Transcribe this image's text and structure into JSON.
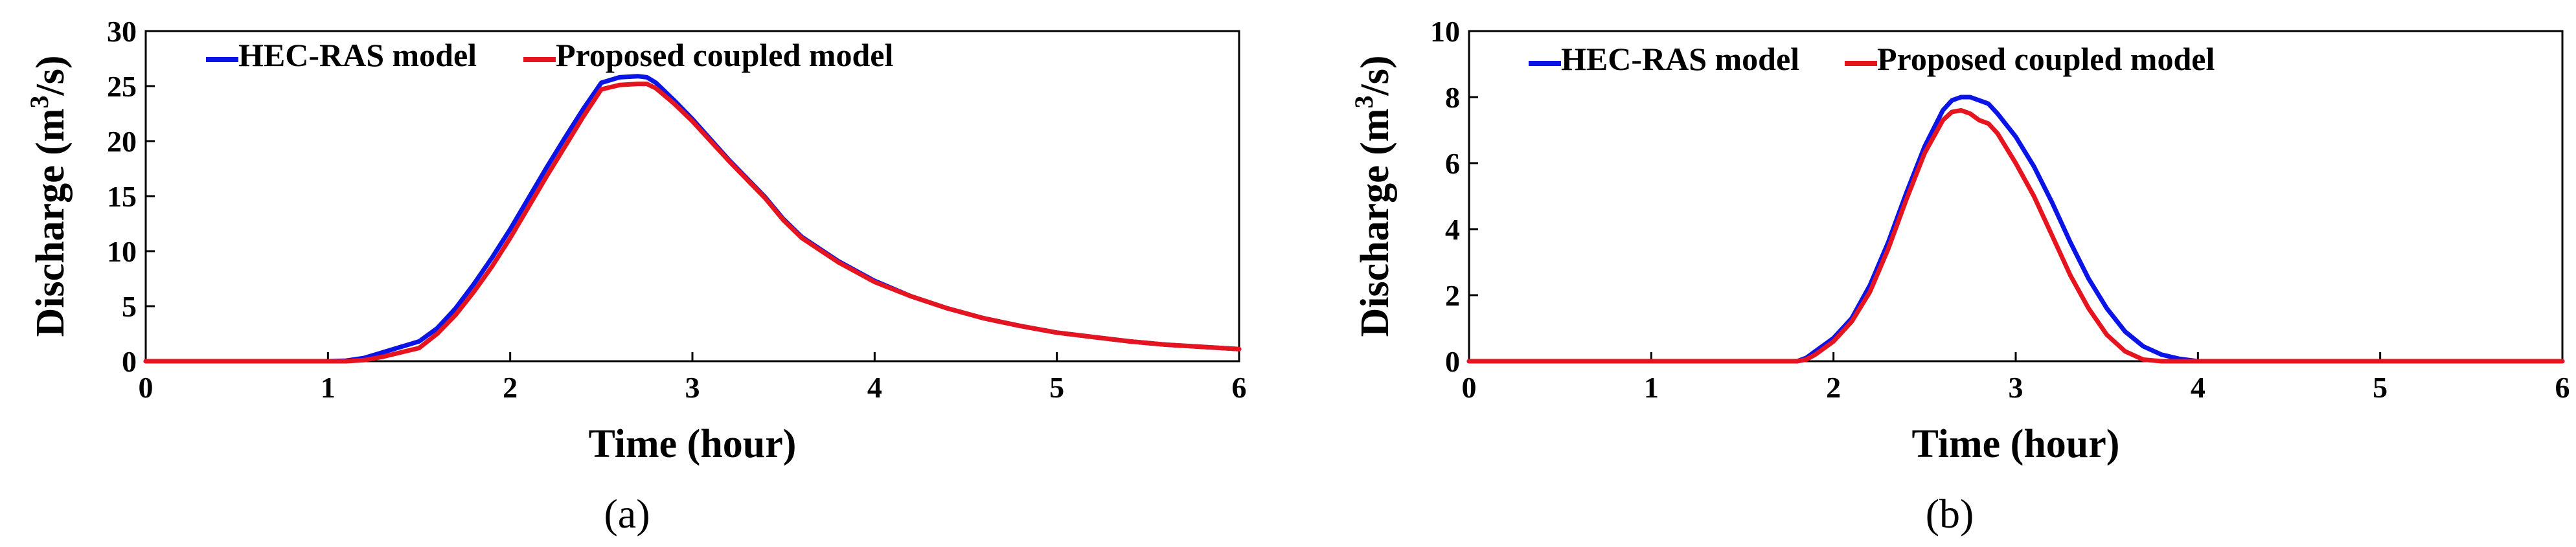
{
  "colors": {
    "hec_ras": "#0a14e6",
    "coupled": "#e6141e",
    "axis": "#000000"
  },
  "chart_data": [
    {
      "type": "line",
      "panel_label": "(a)",
      "xlabel": "Time (hour)",
      "ylabel_prefix": "Discharge (m",
      "ylabel_sup": "3",
      "ylabel_suffix": "/s)",
      "xlim": [
        0,
        6
      ],
      "ylim": [
        0,
        30
      ],
      "xticks": [
        0,
        1,
        2,
        3,
        4,
        5,
        6
      ],
      "yticks": [
        0,
        5,
        10,
        15,
        20,
        25,
        30
      ],
      "legend_position": "top-left",
      "series": [
        {
          "name": "HEC-RAS model",
          "color": "#0a14e6",
          "x": [
            0,
            1.0,
            1.1,
            1.2,
            1.3,
            1.4,
            1.5,
            1.6,
            1.7,
            1.8,
            1.9,
            2.0,
            2.1,
            2.2,
            2.3,
            2.4,
            2.5,
            2.6,
            2.7,
            2.75,
            2.8,
            2.9,
            3.0,
            3.2,
            3.4,
            3.5,
            3.6,
            3.8,
            4.0,
            4.2,
            4.4,
            4.6,
            4.8,
            5.0,
            5.2,
            5.4,
            5.6,
            5.8,
            6.0
          ],
          "y": [
            0,
            0,
            0.05,
            0.3,
            0.8,
            1.3,
            1.8,
            3.0,
            4.8,
            7.0,
            9.4,
            12.0,
            14.8,
            17.6,
            20.3,
            22.9,
            25.3,
            25.8,
            25.9,
            25.8,
            25.3,
            23.7,
            22.0,
            18.3,
            14.9,
            12.9,
            11.3,
            9.1,
            7.3,
            5.9,
            4.8,
            3.9,
            3.2,
            2.6,
            2.2,
            1.8,
            1.5,
            1.3,
            1.1
          ]
        },
        {
          "name": "Proposed coupled model",
          "color": "#e6141e",
          "x": [
            0,
            1.0,
            1.1,
            1.2,
            1.3,
            1.4,
            1.5,
            1.6,
            1.7,
            1.8,
            1.9,
            2.0,
            2.1,
            2.2,
            2.3,
            2.4,
            2.5,
            2.6,
            2.7,
            2.75,
            2.8,
            2.9,
            3.0,
            3.2,
            3.4,
            3.5,
            3.6,
            3.8,
            4.0,
            4.2,
            4.4,
            4.6,
            4.8,
            5.0,
            5.2,
            5.4,
            5.6,
            5.8,
            6.0
          ],
          "y": [
            0,
            0,
            0,
            0.1,
            0.4,
            0.8,
            1.2,
            2.5,
            4.2,
            6.3,
            8.6,
            11.2,
            14.0,
            16.8,
            19.5,
            22.2,
            24.7,
            25.1,
            25.2,
            25.2,
            24.8,
            23.4,
            21.8,
            18.2,
            14.8,
            12.8,
            11.2,
            9.0,
            7.2,
            5.9,
            4.8,
            3.9,
            3.2,
            2.6,
            2.2,
            1.8,
            1.5,
            1.3,
            1.1
          ]
        }
      ]
    },
    {
      "type": "line",
      "panel_label": "(b)",
      "xlabel": "Time (hour)",
      "ylabel_prefix": "Discharge (m",
      "ylabel_sup": "3",
      "ylabel_suffix": "/s)",
      "xlim": [
        0,
        6
      ],
      "ylim": [
        0,
        10
      ],
      "xticks": [
        0,
        1,
        2,
        3,
        4,
        5,
        6
      ],
      "yticks": [
        0,
        2,
        4,
        6,
        8,
        10
      ],
      "legend_position": "top-left",
      "series": [
        {
          "name": "HEC-RAS model",
          "color": "#0a14e6",
          "x": [
            0,
            1.8,
            1.85,
            1.9,
            2.0,
            2.1,
            2.2,
            2.3,
            2.4,
            2.5,
            2.6,
            2.65,
            2.7,
            2.75,
            2.8,
            2.85,
            2.9,
            3.0,
            3.1,
            3.2,
            3.3,
            3.4,
            3.5,
            3.6,
            3.7,
            3.8,
            3.9,
            4.0,
            4.2,
            6.0
          ],
          "y": [
            0,
            0,
            0.1,
            0.3,
            0.7,
            1.3,
            2.3,
            3.6,
            5.1,
            6.5,
            7.6,
            7.9,
            8.0,
            8.0,
            7.9,
            7.8,
            7.5,
            6.8,
            5.9,
            4.8,
            3.6,
            2.5,
            1.6,
            0.9,
            0.45,
            0.2,
            0.07,
            0,
            0,
            0
          ]
        },
        {
          "name": "Proposed coupled model",
          "color": "#e6141e",
          "x": [
            0,
            1.8,
            1.85,
            1.9,
            2.0,
            2.1,
            2.2,
            2.3,
            2.4,
            2.5,
            2.6,
            2.65,
            2.7,
            2.75,
            2.8,
            2.85,
            2.9,
            3.0,
            3.1,
            3.2,
            3.3,
            3.4,
            3.5,
            3.6,
            3.7,
            3.8,
            4.0,
            6.0
          ],
          "y": [
            0,
            0,
            0.05,
            0.2,
            0.6,
            1.2,
            2.1,
            3.4,
            4.9,
            6.3,
            7.3,
            7.55,
            7.6,
            7.5,
            7.3,
            7.2,
            6.9,
            6.0,
            5.0,
            3.8,
            2.6,
            1.6,
            0.8,
            0.3,
            0.05,
            0,
            0,
            0
          ]
        }
      ]
    }
  ]
}
